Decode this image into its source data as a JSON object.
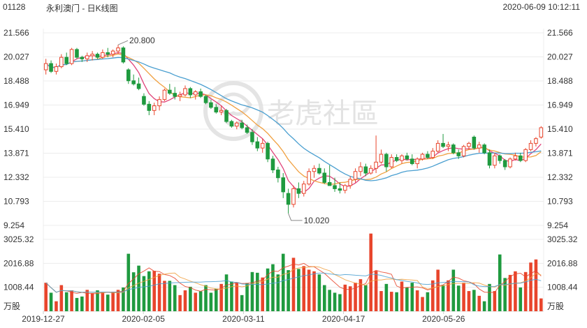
{
  "header": {
    "code": "01128",
    "title": "永利澳门 - 日K线图",
    "datetime": "2020-06-09 10:12:11"
  },
  "watermark": {
    "text": "老虎社區",
    "icon": "tiger-logo-icon"
  },
  "colors": {
    "up": "#e8452c",
    "down": "#1f9a3f",
    "ma5": "#e0447a",
    "ma10": "#f0a040",
    "ma20": "#4a9fd0",
    "vol_ma": "#e8452c"
  },
  "chart_data": [
    {
      "type": "candlestick",
      "price_ticks": [
        "21.566",
        "20.027",
        "18.488",
        "16.949",
        "15.410",
        "13.871",
        "12.332",
        "10.793",
        "9.254"
      ],
      "ylim": [
        9.254,
        21.566
      ],
      "date_labels": [
        "2019-12-27",
        "2020-02-05",
        "2020-03-11",
        "2020-04-17",
        "2020-05-26"
      ],
      "annotations": [
        {
          "label": "20.800",
          "value": 20.8,
          "kind": "high"
        },
        {
          "label": "10.020",
          "value": 10.02,
          "kind": "low"
        }
      ],
      "ohlc": [
        [
          19.2,
          19.9,
          18.9,
          19.6
        ],
        [
          19.6,
          19.8,
          19.0,
          19.1
        ],
        [
          19.1,
          19.6,
          18.9,
          19.4
        ],
        [
          19.4,
          20.2,
          19.3,
          20.0
        ],
        [
          20.0,
          20.3,
          19.5,
          19.6
        ],
        [
          19.6,
          20.6,
          19.5,
          20.5
        ],
        [
          20.5,
          20.6,
          19.9,
          20.0
        ],
        [
          20.0,
          20.1,
          19.7,
          19.9
        ],
        [
          19.9,
          20.3,
          19.7,
          20.1
        ],
        [
          20.1,
          20.4,
          19.8,
          20.2
        ],
        [
          20.2,
          20.3,
          19.9,
          20.0
        ],
        [
          20.0,
          20.5,
          19.9,
          20.3
        ],
        [
          20.3,
          20.6,
          20.0,
          20.2
        ],
        [
          20.2,
          20.5,
          20.0,
          20.4
        ],
        [
          20.4,
          20.8,
          20.2,
          20.6
        ],
        [
          20.6,
          20.7,
          19.6,
          19.7
        ],
        [
          19.2,
          19.3,
          18.3,
          18.5
        ],
        [
          18.5,
          18.9,
          18.2,
          18.3
        ],
        [
          18.3,
          18.7,
          17.9,
          18.0
        ],
        [
          17.5,
          17.7,
          16.9,
          17.0
        ],
        [
          17.0,
          17.2,
          16.3,
          16.6
        ],
        [
          16.6,
          17.1,
          16.3,
          16.9
        ],
        [
          16.9,
          17.5,
          16.6,
          17.3
        ],
        [
          17.3,
          18.0,
          17.2,
          17.9
        ],
        [
          17.9,
          18.3,
          17.6,
          17.7
        ],
        [
          17.7,
          18.1,
          17.3,
          17.5
        ],
        [
          17.5,
          17.8,
          17.2,
          17.6
        ],
        [
          17.6,
          18.2,
          17.5,
          18.0
        ],
        [
          18.0,
          18.1,
          17.4,
          17.6
        ],
        [
          17.6,
          17.9,
          17.3,
          17.8
        ],
        [
          17.8,
          18.0,
          17.4,
          17.5
        ],
        [
          17.5,
          17.6,
          17.0,
          17.1
        ],
        [
          17.1,
          17.3,
          16.7,
          16.8
        ],
        [
          16.8,
          17.0,
          16.4,
          16.5
        ],
        [
          16.5,
          16.9,
          16.3,
          16.6
        ],
        [
          16.6,
          16.7,
          15.8,
          15.9
        ],
        [
          15.9,
          16.0,
          15.5,
          15.6
        ],
        [
          15.6,
          15.9,
          15.4,
          15.8
        ],
        [
          15.8,
          16.0,
          15.4,
          15.5
        ],
        [
          15.5,
          15.7,
          15.1,
          15.2
        ],
        [
          15.2,
          15.4,
          14.4,
          14.6
        ],
        [
          14.6,
          14.9,
          14.0,
          14.2
        ],
        [
          14.2,
          14.8,
          13.9,
          14.5
        ],
        [
          14.5,
          14.6,
          13.3,
          13.5
        ],
        [
          13.5,
          13.7,
          12.6,
          12.8
        ],
        [
          12.8,
          13.0,
          12.0,
          12.3
        ],
        [
          12.3,
          12.6,
          11.0,
          11.4
        ],
        [
          11.3,
          11.6,
          10.02,
          10.6
        ],
        [
          10.6,
          11.8,
          10.4,
          11.6
        ],
        [
          11.6,
          12.0,
          11.0,
          11.3
        ],
        [
          11.3,
          12.1,
          11.1,
          11.9
        ],
        [
          11.9,
          12.9,
          11.8,
          12.7
        ],
        [
          12.7,
          13.1,
          12.3,
          12.9
        ],
        [
          12.9,
          13.2,
          12.5,
          12.6
        ],
        [
          12.6,
          12.9,
          11.9,
          12.0
        ],
        [
          12.0,
          13.1,
          11.8,
          11.8
        ],
        [
          11.8,
          12.3,
          11.4,
          11.6
        ],
        [
          11.6,
          12.0,
          11.3,
          11.5
        ],
        [
          11.5,
          11.9,
          11.3,
          11.8
        ],
        [
          11.8,
          12.4,
          11.6,
          12.2
        ],
        [
          12.2,
          12.9,
          12.0,
          12.7
        ],
        [
          12.7,
          13.3,
          12.4,
          13.0
        ],
        [
          13.0,
          13.2,
          12.4,
          12.6
        ],
        [
          12.6,
          13.1,
          12.5,
          12.9
        ],
        [
          12.9,
          15.0,
          12.6,
          13.3
        ],
        [
          13.3,
          14.1,
          13.2,
          13.8
        ],
        [
          13.8,
          13.9,
          12.7,
          13.0
        ],
        [
          13.0,
          13.8,
          12.9,
          13.6
        ],
        [
          13.6,
          13.8,
          13.3,
          13.4
        ],
        [
          13.4,
          13.8,
          13.2,
          13.7
        ],
        [
          13.7,
          13.9,
          13.4,
          13.5
        ],
        [
          13.5,
          13.8,
          13.1,
          13.2
        ],
        [
          13.2,
          13.6,
          12.9,
          13.5
        ],
        [
          13.5,
          13.9,
          13.4,
          13.8
        ],
        [
          13.8,
          14.0,
          13.5,
          13.6
        ],
        [
          13.6,
          14.2,
          13.5,
          14.0
        ],
        [
          14.0,
          14.7,
          13.9,
          14.5
        ],
        [
          14.5,
          15.1,
          14.2,
          14.3
        ],
        [
          14.3,
          14.6,
          14.0,
          14.4
        ],
        [
          14.4,
          14.5,
          13.8,
          13.9
        ],
        [
          13.9,
          14.1,
          13.5,
          13.7
        ],
        [
          13.7,
          14.4,
          13.6,
          14.3
        ],
        [
          14.3,
          14.6,
          14.1,
          14.5
        ],
        [
          14.9,
          15.0,
          14.1,
          14.2
        ],
        [
          14.2,
          14.6,
          13.9,
          14.4
        ],
        [
          14.4,
          14.5,
          13.8,
          13.9
        ],
        [
          13.9,
          14.1,
          12.9,
          13.1
        ],
        [
          13.1,
          13.9,
          12.9,
          13.7
        ],
        [
          13.7,
          13.8,
          13.2,
          13.4
        ],
        [
          13.4,
          13.5,
          12.8,
          13.0
        ],
        [
          13.0,
          13.6,
          12.9,
          13.5
        ],
        [
          13.5,
          13.9,
          13.4,
          13.7
        ],
        [
          13.7,
          13.9,
          13.3,
          13.4
        ],
        [
          13.4,
          14.2,
          13.3,
          14.1
        ],
        [
          14.1,
          14.7,
          14.0,
          14.5
        ],
        [
          14.5,
          14.9,
          14.3,
          14.8
        ],
        [
          14.9,
          15.6,
          14.8,
          15.5
        ]
      ],
      "ma": [
        {
          "period": 5,
          "color": "#e0447a"
        },
        {
          "period": 10,
          "color": "#f0a040"
        },
        {
          "period": 20,
          "color": "#4a9fd0"
        }
      ]
    },
    {
      "type": "bar",
      "volume_ticks": [
        "3025.32",
        "2016.88",
        "1008.44"
      ],
      "unit": "万股",
      "ylim": [
        0,
        3025.32
      ],
      "volume": [
        1200,
        780,
        420,
        1100,
        800,
        880,
        560,
        620,
        900,
        760,
        880,
        800,
        700,
        820,
        900,
        1000,
        2420,
        1640,
        1920,
        1480,
        1680,
        1700,
        1580,
        1280,
        1280,
        1100,
        680,
        880,
        1030,
        780,
        840,
        1100,
        780,
        950,
        1150,
        1550,
        1250,
        1200,
        680,
        1190,
        1650,
        1620,
        1420,
        1800,
        1980,
        1550,
        2420,
        1730,
        2250,
        1780,
        1900,
        1750,
        1680,
        1550,
        1100,
        900,
        780,
        720,
        1120,
        1050,
        1200,
        1350,
        1100,
        3270,
        1700,
        850,
        1150,
        820,
        800,
        1250,
        1000,
        1200,
        880,
        600,
        800,
        1300,
        1750,
        1100,
        1300,
        1750,
        1080,
        1200,
        850,
        900,
        650,
        420,
        1150,
        850,
        2390,
        1400,
        1530,
        1680,
        1000,
        1650,
        2050,
        2180,
        540
      ]
    }
  ]
}
